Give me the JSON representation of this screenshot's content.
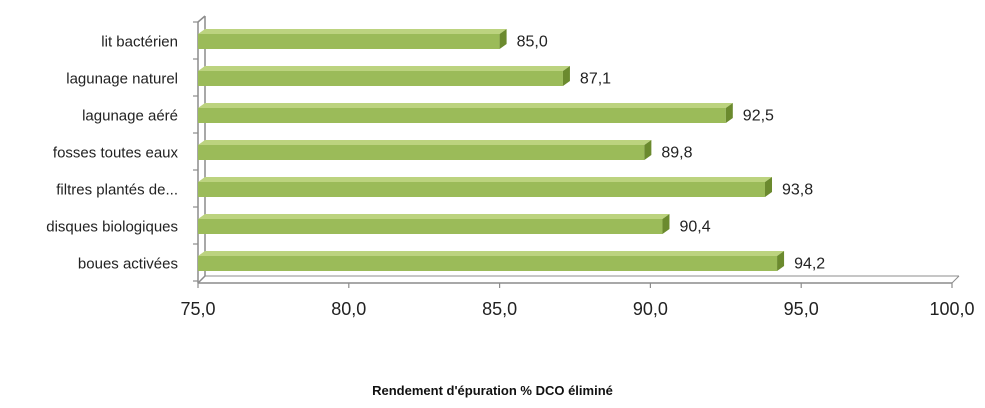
{
  "chart_data": {
    "type": "bar",
    "orientation": "horizontal",
    "style": "3d",
    "categories": [
      "lit bactérien",
      "lagunage naturel",
      "lagunage aéré",
      "fosses toutes eaux",
      "filtres plantés de...",
      "disques biologiques",
      "boues activées"
    ],
    "values": [
      85.0,
      87.1,
      92.5,
      89.8,
      93.8,
      90.4,
      94.2
    ],
    "value_labels": [
      "85,0",
      "87,1",
      "92,5",
      "89,8",
      "93,8",
      "90,4",
      "94,2"
    ],
    "xlabel": "Rendement d'épuration % DCO éliminé",
    "xlim": [
      75,
      100
    ],
    "xticks": [
      75,
      80,
      85,
      90,
      95,
      100
    ],
    "xtick_labels": [
      "75,0",
      "80,0",
      "85,0",
      "90,0",
      "95,0",
      "100,0"
    ],
    "grid": false,
    "legend": "none",
    "colors": {
      "bar_front": "#9bbb59",
      "bar_top": "#bcd37f",
      "bar_side": "#6b8a2e",
      "axis": "#8c8c8c"
    }
  }
}
